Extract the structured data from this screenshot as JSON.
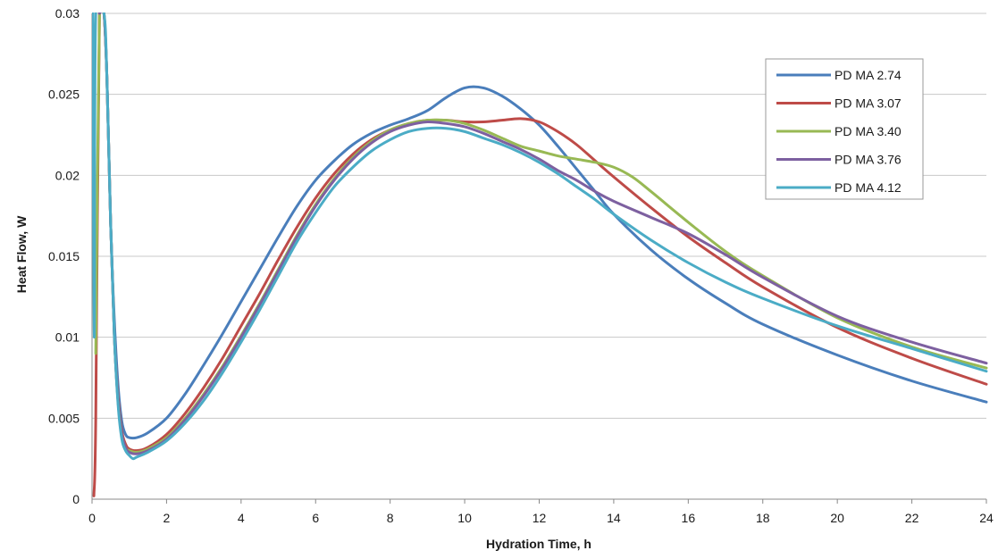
{
  "chart_data": {
    "type": "line",
    "title": "",
    "xlabel": "Hydration Time, h",
    "ylabel": "Heat Flow, W",
    "xlim": [
      0,
      24
    ],
    "ylim": [
      0,
      0.03
    ],
    "xticks": [
      0,
      2,
      4,
      6,
      8,
      10,
      12,
      14,
      16,
      18,
      20,
      22,
      24
    ],
    "xtick_labels": [
      "0",
      "2",
      "4",
      "6",
      "8",
      "10",
      "12",
      "14",
      "16",
      "18",
      "20",
      "22",
      "24"
    ],
    "yticks": [
      0,
      0.005,
      0.01,
      0.015,
      0.02,
      0.025,
      0.03
    ],
    "ytick_labels": [
      "0",
      "0.005",
      "0.01",
      "0.015",
      "0.02",
      "0.025",
      "0.03"
    ],
    "grid": "horizontal",
    "legend_position": "top-right",
    "series": [
      {
        "name": "PD MA 2.74",
        "color": "#4a7ebb",
        "points": [
          [
            0.2,
            0.03
          ],
          [
            0.32,
            0.03
          ],
          [
            0.4,
            0.026
          ],
          [
            0.5,
            0.017
          ],
          [
            0.6,
            0.011
          ],
          [
            0.7,
            0.007
          ],
          [
            0.8,
            0.0048
          ],
          [
            0.9,
            0.004
          ],
          [
            1.0,
            0.0038
          ],
          [
            1.2,
            0.0038
          ],
          [
            1.5,
            0.0041
          ],
          [
            2,
            0.005
          ],
          [
            2.5,
            0.0065
          ],
          [
            3,
            0.0083
          ],
          [
            3.5,
            0.0102
          ],
          [
            4,
            0.0122
          ],
          [
            4.5,
            0.0142
          ],
          [
            5,
            0.0162
          ],
          [
            5.5,
            0.0181
          ],
          [
            6,
            0.0197
          ],
          [
            6.5,
            0.0209
          ],
          [
            7,
            0.0219
          ],
          [
            7.5,
            0.0226
          ],
          [
            8,
            0.0231
          ],
          [
            8.5,
            0.0235
          ],
          [
            9,
            0.024
          ],
          [
            9.5,
            0.0248
          ],
          [
            10,
            0.0254
          ],
          [
            10.5,
            0.0254
          ],
          [
            11,
            0.0249
          ],
          [
            11.5,
            0.0241
          ],
          [
            12,
            0.0231
          ],
          [
            12.5,
            0.0218
          ],
          [
            13,
            0.0204
          ],
          [
            13.5,
            0.019
          ],
          [
            14,
            0.0176
          ],
          [
            15,
            0.0154
          ],
          [
            16,
            0.0136
          ],
          [
            17,
            0.0121
          ],
          [
            18,
            0.0108
          ],
          [
            20,
            0.0089
          ],
          [
            22,
            0.0073
          ],
          [
            24,
            0.006
          ]
        ]
      },
      {
        "name": "PD MA 3.07",
        "color": "#be4b48",
        "points": [
          [
            0.05,
            0.0002
          ],
          [
            0.1,
            0.005
          ],
          [
            0.2,
            0.03
          ],
          [
            0.32,
            0.03
          ],
          [
            0.4,
            0.026
          ],
          [
            0.5,
            0.017
          ],
          [
            0.6,
            0.01
          ],
          [
            0.7,
            0.0063
          ],
          [
            0.8,
            0.0042
          ],
          [
            0.9,
            0.0034
          ],
          [
            1.0,
            0.0031
          ],
          [
            1.2,
            0.003
          ],
          [
            1.5,
            0.0032
          ],
          [
            2,
            0.004
          ],
          [
            2.5,
            0.0053
          ],
          [
            3,
            0.0069
          ],
          [
            3.5,
            0.0087
          ],
          [
            4,
            0.0107
          ],
          [
            4.5,
            0.0127
          ],
          [
            5,
            0.0148
          ],
          [
            5.5,
            0.0168
          ],
          [
            6,
            0.0186
          ],
          [
            6.5,
            0.0201
          ],
          [
            7,
            0.0213
          ],
          [
            7.5,
            0.0222
          ],
          [
            8,
            0.0228
          ],
          [
            8.5,
            0.0232
          ],
          [
            9,
            0.0234
          ],
          [
            9.5,
            0.0234
          ],
          [
            10,
            0.0233
          ],
          [
            10.5,
            0.0233
          ],
          [
            11,
            0.0234
          ],
          [
            11.5,
            0.0235
          ],
          [
            12,
            0.0233
          ],
          [
            12.5,
            0.0227
          ],
          [
            13,
            0.0219
          ],
          [
            13.5,
            0.0209
          ],
          [
            14,
            0.0199
          ],
          [
            15,
            0.018
          ],
          [
            16,
            0.0162
          ],
          [
            17,
            0.0146
          ],
          [
            18,
            0.0131
          ],
          [
            20,
            0.0106
          ],
          [
            22,
            0.0087
          ],
          [
            24,
            0.0071
          ]
        ]
      },
      {
        "name": "PD MA 3.40",
        "color": "#98b954",
        "points": [
          [
            0.1,
            0.009
          ],
          [
            0.2,
            0.03
          ],
          [
            0.32,
            0.03
          ],
          [
            0.4,
            0.026
          ],
          [
            0.5,
            0.017
          ],
          [
            0.6,
            0.01
          ],
          [
            0.7,
            0.006
          ],
          [
            0.8,
            0.004
          ],
          [
            0.9,
            0.0032
          ],
          [
            1.0,
            0.003
          ],
          [
            1.2,
            0.0029
          ],
          [
            1.5,
            0.0031
          ],
          [
            2,
            0.0038
          ],
          [
            2.5,
            0.005
          ],
          [
            3,
            0.0065
          ],
          [
            3.5,
            0.0082
          ],
          [
            4,
            0.0101
          ],
          [
            4.5,
            0.0121
          ],
          [
            5,
            0.0142
          ],
          [
            5.5,
            0.0163
          ],
          [
            6,
            0.0182
          ],
          [
            6.5,
            0.0198
          ],
          [
            7,
            0.0211
          ],
          [
            7.5,
            0.0221
          ],
          [
            8,
            0.0228
          ],
          [
            8.5,
            0.0232
          ],
          [
            9,
            0.0234
          ],
          [
            9.5,
            0.0234
          ],
          [
            10,
            0.0232
          ],
          [
            10.5,
            0.0228
          ],
          [
            11,
            0.0223
          ],
          [
            11.5,
            0.0218
          ],
          [
            12,
            0.0215
          ],
          [
            12.5,
            0.0212
          ],
          [
            13,
            0.021
          ],
          [
            13.5,
            0.0208
          ],
          [
            14,
            0.0205
          ],
          [
            14.5,
            0.0199
          ],
          [
            15,
            0.019
          ],
          [
            16,
            0.0171
          ],
          [
            17,
            0.0153
          ],
          [
            18,
            0.0138
          ],
          [
            20,
            0.0112
          ],
          [
            22,
            0.0094
          ],
          [
            24,
            0.0081
          ]
        ]
      },
      {
        "name": "PD MA 3.76",
        "color": "#7d60a0",
        "points": [
          [
            0.2,
            0.03
          ],
          [
            0.32,
            0.03
          ],
          [
            0.4,
            0.026
          ],
          [
            0.5,
            0.017
          ],
          [
            0.6,
            0.01
          ],
          [
            0.7,
            0.006
          ],
          [
            0.8,
            0.004
          ],
          [
            0.9,
            0.0032
          ],
          [
            1.0,
            0.0029
          ],
          [
            1.2,
            0.0028
          ],
          [
            1.5,
            0.003
          ],
          [
            2,
            0.0037
          ],
          [
            2.5,
            0.0049
          ],
          [
            3,
            0.0064
          ],
          [
            3.5,
            0.0081
          ],
          [
            4,
            0.01
          ],
          [
            4.5,
            0.012
          ],
          [
            5,
            0.0141
          ],
          [
            5.5,
            0.0162
          ],
          [
            6,
            0.0181
          ],
          [
            6.5,
            0.0197
          ],
          [
            7,
            0.021
          ],
          [
            7.5,
            0.022
          ],
          [
            8,
            0.0227
          ],
          [
            8.5,
            0.0231
          ],
          [
            9,
            0.0233
          ],
          [
            9.5,
            0.0232
          ],
          [
            10,
            0.023
          ],
          [
            10.5,
            0.0226
          ],
          [
            11,
            0.0221
          ],
          [
            11.5,
            0.0216
          ],
          [
            12,
            0.021
          ],
          [
            12.5,
            0.0203
          ],
          [
            13,
            0.0197
          ],
          [
            13.5,
            0.019
          ],
          [
            14,
            0.0184
          ],
          [
            15,
            0.0174
          ],
          [
            16,
            0.0164
          ],
          [
            17,
            0.0151
          ],
          [
            18,
            0.0137
          ],
          [
            20,
            0.0113
          ],
          [
            22,
            0.0097
          ],
          [
            24,
            0.0084
          ]
        ]
      },
      {
        "name": "PD MA 4.12",
        "color": "#4bacc6",
        "points": [
          [
            0.02,
            0.03
          ],
          [
            0.06,
            0.01
          ],
          [
            0.1,
            0.03
          ],
          [
            0.32,
            0.03
          ],
          [
            0.4,
            0.026
          ],
          [
            0.5,
            0.017
          ],
          [
            0.6,
            0.01
          ],
          [
            0.7,
            0.0058
          ],
          [
            0.8,
            0.0037
          ],
          [
            0.9,
            0.003
          ],
          [
            1.0,
            0.0027
          ],
          [
            1.1,
            0.0025
          ],
          [
            1.2,
            0.0026
          ],
          [
            1.5,
            0.0029
          ],
          [
            2,
            0.0036
          ],
          [
            2.5,
            0.0047
          ],
          [
            3,
            0.0061
          ],
          [
            3.5,
            0.0078
          ],
          [
            4,
            0.0097
          ],
          [
            4.5,
            0.0117
          ],
          [
            5,
            0.0138
          ],
          [
            5.5,
            0.0159
          ],
          [
            6,
            0.0177
          ],
          [
            6.5,
            0.0193
          ],
          [
            7,
            0.0205
          ],
          [
            7.5,
            0.0215
          ],
          [
            8,
            0.0222
          ],
          [
            8.5,
            0.0227
          ],
          [
            9,
            0.0229
          ],
          [
            9.5,
            0.0229
          ],
          [
            10,
            0.0227
          ],
          [
            10.5,
            0.0223
          ],
          [
            11,
            0.0219
          ],
          [
            11.5,
            0.0214
          ],
          [
            12,
            0.0208
          ],
          [
            12.5,
            0.0201
          ],
          [
            13,
            0.0193
          ],
          [
            13.5,
            0.0185
          ],
          [
            14,
            0.0176
          ],
          [
            15,
            0.016
          ],
          [
            16,
            0.0146
          ],
          [
            17,
            0.0134
          ],
          [
            18,
            0.0124
          ],
          [
            20,
            0.0107
          ],
          [
            22,
            0.0093
          ],
          [
            24,
            0.0079
          ]
        ]
      }
    ]
  }
}
